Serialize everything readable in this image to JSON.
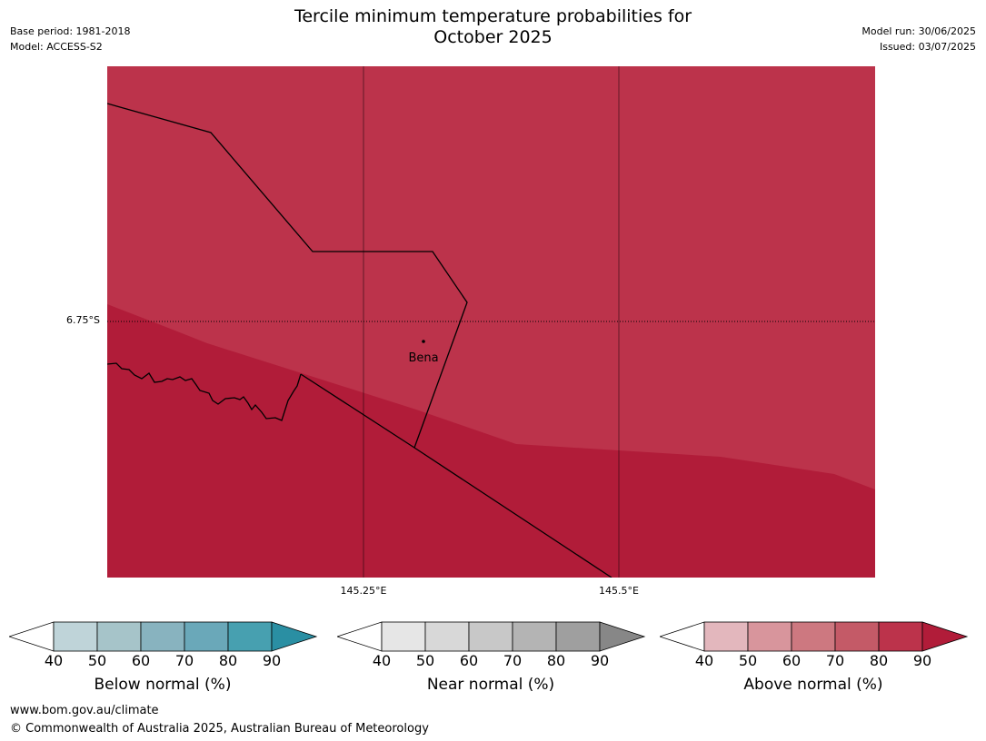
{
  "header": {
    "title_line1": "Tercile minimum temperature probabilities for",
    "title_line2": "October 2025",
    "base_period": "Base period: 1981-2018",
    "model": "Model: ACCESS-S2",
    "model_run": "Model run: 30/06/2025",
    "issued": "Issued: 03/07/2025"
  },
  "map": {
    "latitude_label": "6.75°S",
    "longitude_labels": [
      "145.25°E",
      "145.5°E"
    ],
    "place_name": "Bena",
    "colors": {
      "above_80": "#bc334b",
      "above_90": "#b11c39",
      "boundary": "#000000"
    }
  },
  "colorbars": [
    {
      "caption": "Below normal (%)",
      "ticks": [
        "40",
        "50",
        "60",
        "70",
        "80",
        "90"
      ],
      "colors": [
        "#bfd4d9",
        "#a6c4c9",
        "#88b3bf",
        "#6aa8b9",
        "#47a0b0",
        "#2a8fa3"
      ]
    },
    {
      "caption": "Near normal (%)",
      "ticks": [
        "40",
        "50",
        "60",
        "70",
        "80",
        "90"
      ],
      "colors": [
        "#e6e6e6",
        "#d8d8d8",
        "#c8c8c8",
        "#b4b4b4",
        "#9f9f9f",
        "#878787"
      ]
    },
    {
      "caption": "Above normal (%)",
      "ticks": [
        "40",
        "50",
        "60",
        "70",
        "80",
        "90"
      ],
      "colors": [
        "#e3b7bd",
        "#d8959c",
        "#cd7880",
        "#c45a67",
        "#bc334b",
        "#b11c39"
      ]
    }
  ],
  "footer": {
    "url": "www.bom.gov.au/climate",
    "copyright": "© Commonwealth of Australia 2025, Australian Bureau of Meteorology"
  }
}
